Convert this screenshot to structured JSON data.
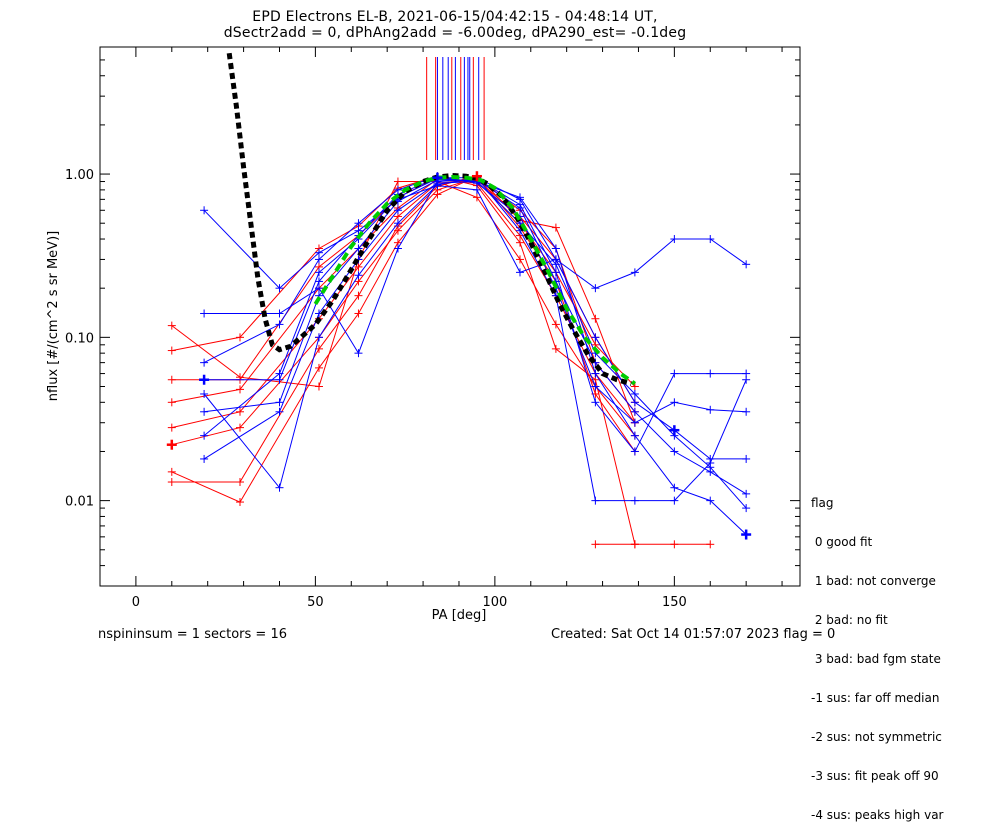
{
  "chart_data": {
    "type": "line",
    "title": "EPD Electrons EL-B, 2021-06-15/04:42:15 - 04:48:14 UT,",
    "subtitle": "dSectr2add = 0, dPhAng2add = -6.00deg, dPA290_est=  -0.1deg",
    "xlabel": "PA [deg]",
    "ylabel": "nflux [#/(cm^2 s sr MeV)]",
    "xlim": [
      -10,
      185
    ],
    "ylim": [
      0.003,
      6
    ],
    "yscale": "log",
    "xticks": [
      0,
      50,
      100,
      150
    ],
    "xtick_labels": [
      "0",
      "50",
      "100",
      "150"
    ],
    "yticks": [
      0.01,
      0.1,
      1.0
    ],
    "ytick_labels": [
      "0.01",
      "0.10",
      "1.00"
    ],
    "vertical_lines": {
      "red": [
        81,
        83.5,
        88,
        90.5,
        94,
        97
      ],
      "blue": [
        84,
        85.5,
        87,
        89,
        91.5,
        92.5,
        93,
        95.5
      ]
    },
    "series": [
      {
        "color": "#ff0000",
        "x": [
          10,
          29,
          51,
          62,
          73,
          84,
          95,
          107,
          117,
          128,
          139
        ],
        "y": [
          0.055,
          0.055,
          0.27,
          0.42,
          0.72,
          0.95,
          0.9,
          0.5,
          0.25,
          0.09,
          0.05
        ]
      },
      {
        "color": "#ff0000",
        "x": [
          10,
          29,
          51,
          62,
          73,
          84,
          95,
          107,
          117,
          128,
          139
        ],
        "y": [
          0.04,
          0.048,
          0.2,
          0.35,
          0.62,
          0.93,
          0.88,
          0.42,
          0.18,
          0.06,
          0.03
        ]
      },
      {
        "color": "#ff0000",
        "x": [
          10,
          29,
          51,
          62,
          73,
          84,
          95,
          107,
          117,
          128,
          139
        ],
        "y": [
          0.028,
          0.035,
          0.13,
          0.27,
          0.55,
          0.88,
          0.92,
          0.55,
          0.3,
          0.1,
          0.04
        ]
      },
      {
        "color": "#ff0000",
        "x": [
          10,
          29,
          51,
          62,
          73,
          84,
          95,
          107,
          117,
          128,
          139
        ],
        "y": [
          0.022,
          0.028,
          0.1,
          0.22,
          0.45,
          0.8,
          0.95,
          0.6,
          0.35,
          0.07,
          0.035
        ]
      },
      {
        "color": "#ff0000",
        "x": [
          10,
          29,
          51,
          62,
          73,
          84,
          95,
          107,
          117,
          128,
          139
        ],
        "y": [
          0.015,
          0.0098,
          0.065,
          0.14,
          0.38,
          0.75,
          0.97,
          0.47,
          0.22,
          0.045,
          0.02
        ]
      },
      {
        "color": "#ff0000",
        "x": [
          10,
          29,
          51,
          62,
          73,
          84,
          95,
          107,
          117,
          128,
          139
        ],
        "y": [
          0.083,
          0.1,
          0.35,
          0.48,
          0.82,
          0.97,
          0.85,
          0.38,
          0.085,
          0.055,
          0.0054
        ]
      },
      {
        "color": "#ff0000",
        "x": [
          10,
          29,
          51,
          62,
          73,
          84,
          95,
          107,
          117,
          128,
          139
        ],
        "y": [
          0.118,
          0.057,
          0.05,
          0.3,
          0.9,
          0.9,
          0.72,
          0.3,
          0.12,
          0.05,
          0.025
        ]
      },
      {
        "color": "#ff0000",
        "x": [
          10,
          29,
          51,
          62,
          73,
          84,
          95,
          107,
          117,
          128,
          139
        ],
        "y": [
          0.013,
          0.013,
          0.085,
          0.18,
          0.48,
          0.84,
          0.98,
          0.52,
          0.47,
          0.13,
          0.03
        ]
      },
      {
        "color": "#ff0000",
        "x": [
          128,
          139,
          150,
          160
        ],
        "y": [
          0.0054,
          0.0054,
          0.0054,
          0.0054
        ]
      },
      {
        "color": "#0000ff",
        "x": [
          19,
          40,
          51,
          62,
          73,
          84,
          95,
          107,
          117,
          128,
          139,
          150,
          160,
          170
        ],
        "y": [
          0.055,
          0.055,
          0.22,
          0.42,
          0.75,
          0.95,
          0.95,
          0.7,
          0.3,
          0.1,
          0.04,
          0.027,
          0.018,
          0.018
        ]
      },
      {
        "color": "#0000ff",
        "x": [
          19,
          40,
          51,
          62,
          73,
          84,
          95,
          107,
          117,
          128,
          139,
          150,
          160,
          170
        ],
        "y": [
          0.035,
          0.04,
          0.18,
          0.35,
          0.68,
          0.92,
          0.92,
          0.62,
          0.22,
          0.07,
          0.035,
          0.02,
          0.015,
          0.011
        ]
      },
      {
        "color": "#0000ff",
        "x": [
          19,
          40,
          51,
          62,
          73,
          84,
          95,
          107,
          117,
          128,
          139,
          150,
          160,
          170
        ],
        "y": [
          0.07,
          0.12,
          0.3,
          0.5,
          0.8,
          0.97,
          0.88,
          0.55,
          0.2,
          0.05,
          0.03,
          0.04,
          0.036,
          0.035
        ]
      },
      {
        "color": "#0000ff",
        "x": [
          19,
          40,
          51,
          62,
          73,
          84,
          95,
          107,
          117,
          128,
          139,
          150,
          160,
          170
        ],
        "y": [
          0.018,
          0.035,
          0.14,
          0.3,
          0.6,
          0.88,
          0.9,
          0.72,
          0.35,
          0.06,
          0.025,
          0.012,
          0.01,
          0.0062
        ]
      },
      {
        "color": "#0000ff",
        "x": [
          19,
          40,
          51,
          62,
          73,
          84,
          95,
          107,
          117,
          128,
          139,
          150,
          160,
          170
        ],
        "y": [
          0.6,
          0.2,
          0.33,
          0.45,
          0.7,
          0.85,
          0.8,
          0.25,
          0.3,
          0.2,
          0.25,
          0.4,
          0.4,
          0.28
        ]
      },
      {
        "color": "#0000ff",
        "x": [
          19,
          40,
          51,
          62,
          73,
          84,
          95,
          107,
          117,
          128,
          139,
          150,
          160,
          170
        ],
        "y": [
          0.14,
          0.14,
          0.2,
          0.08,
          0.35,
          0.9,
          0.93,
          0.65,
          0.25,
          0.04,
          0.02,
          0.06,
          0.06,
          0.06
        ]
      },
      {
        "color": "#0000ff",
        "x": [
          19,
          40,
          51,
          62,
          73,
          84,
          95,
          107,
          117,
          128,
          139,
          150,
          160,
          170
        ],
        "y": [
          0.045,
          0.012,
          0.1,
          0.24,
          0.5,
          0.86,
          0.95,
          0.45,
          0.18,
          0.01,
          0.01,
          0.01,
          0.017,
          0.055
        ]
      },
      {
        "color": "#0000ff",
        "x": [
          19,
          40,
          51,
          62,
          73,
          84,
          95,
          107,
          117,
          128,
          139,
          150,
          160,
          170
        ],
        "y": [
          0.025,
          0.06,
          0.25,
          0.4,
          0.72,
          0.94,
          0.9,
          0.5,
          0.28,
          0.08,
          0.045,
          0.025,
          0.016,
          0.009
        ]
      }
    ],
    "fits": [
      {
        "name": "",
        "color": "#000000",
        "style": "dashed",
        "x": [
          26,
          28,
          30,
          32,
          34,
          36,
          38,
          40,
          43,
          46,
          50,
          55,
          60,
          65,
          70,
          75,
          80,
          84,
          88,
          92,
          95,
          98,
          102,
          106,
          110,
          114,
          118,
          122,
          126,
          130,
          134,
          138
        ],
        "y": [
          5.5,
          2.6,
          1.1,
          0.5,
          0.23,
          0.13,
          0.09,
          0.084,
          0.088,
          0.1,
          0.12,
          0.17,
          0.26,
          0.4,
          0.6,
          0.78,
          0.9,
          0.96,
          0.98,
          0.97,
          0.94,
          0.87,
          0.73,
          0.55,
          0.38,
          0.25,
          0.16,
          0.11,
          0.078,
          0.06,
          0.055,
          0.052
        ]
      },
      {
        "name": "",
        "color": "#00cc00",
        "style": "dashed",
        "x": [
          50,
          55,
          60,
          65,
          70,
          75,
          80,
          84,
          88,
          92,
          96,
          100,
          105,
          110,
          115,
          120,
          125,
          130,
          135,
          139
        ],
        "y": [
          0.16,
          0.24,
          0.36,
          0.5,
          0.66,
          0.8,
          0.9,
          0.95,
          0.96,
          0.95,
          0.92,
          0.82,
          0.62,
          0.4,
          0.25,
          0.15,
          0.1,
          0.075,
          0.06,
          0.052
        ]
      }
    ],
    "highlight_points": [
      {
        "color": "#0000ff",
        "x": 19,
        "y": 0.055
      },
      {
        "color": "#0000ff",
        "x": 84,
        "y": 0.95
      },
      {
        "color": "#ff0000",
        "x": 95,
        "y": 0.97
      },
      {
        "color": "#ff0000",
        "x": 10,
        "y": 0.022
      },
      {
        "color": "#0000ff",
        "x": 150,
        "y": 0.027
      },
      {
        "color": "#0000ff",
        "x": 170,
        "y": 0.0062
      }
    ],
    "grid": false
  },
  "legend": {
    "header": "flag",
    "items": [
      " 0 good fit",
      " 1 bad: not converge",
      " 2 bad: no fit",
      " 3 bad: bad fgm state",
      "-1 sus: far off median",
      "-2 sus: not symmetric",
      "-3 sus: fit peak off 90",
      "-4 sus: peaks high var"
    ]
  },
  "footer": {
    "left": "nspininsum =  1  sectors = 16",
    "right": "Created: Sat Oct 14 01:57:07 2023    flag = 0"
  }
}
